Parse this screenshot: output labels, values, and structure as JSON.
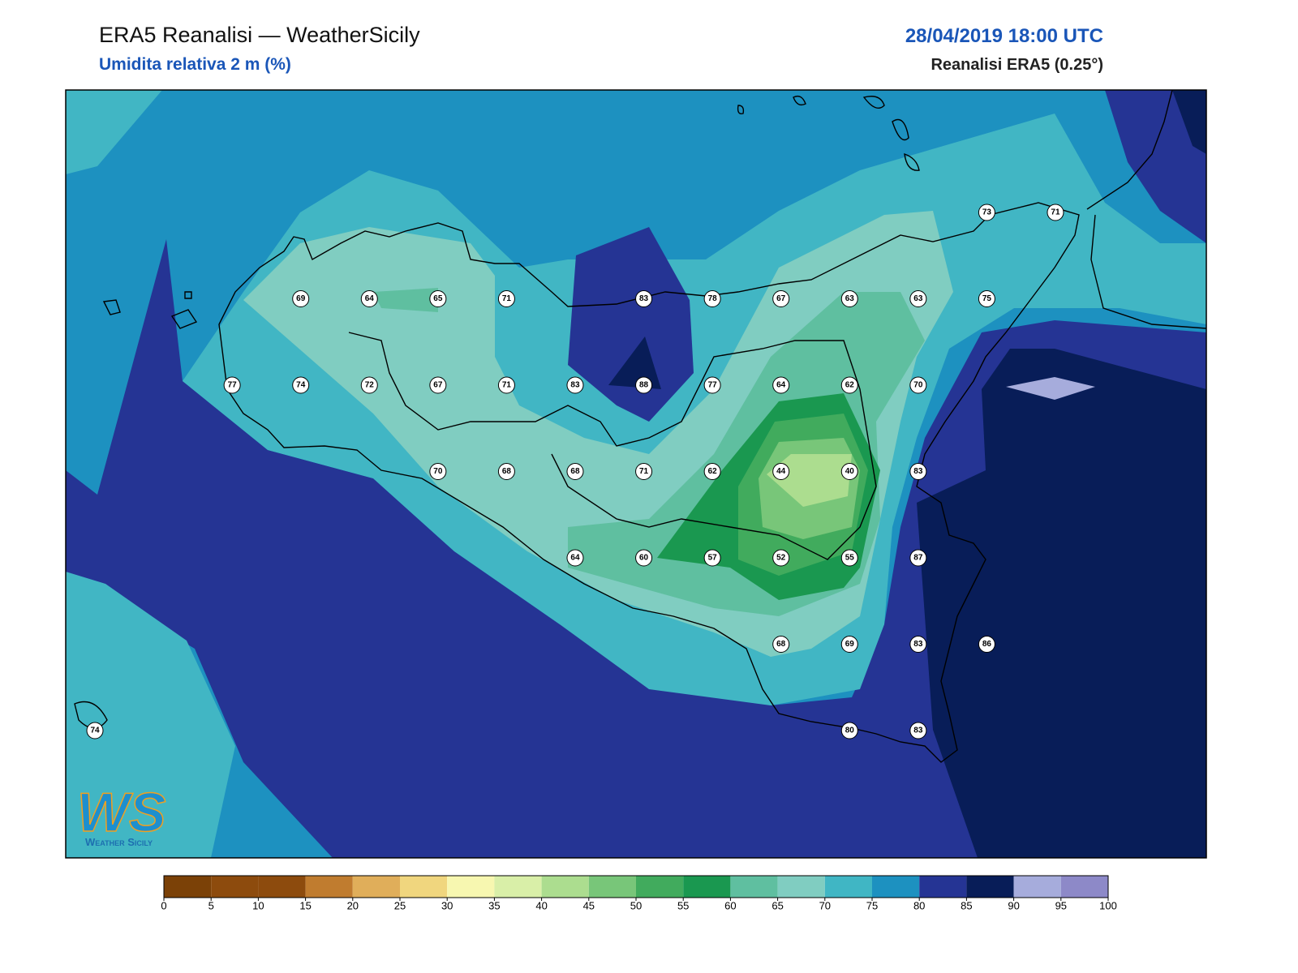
{
  "header": {
    "title": "ERA5 Reanalisi — WeatherSicily",
    "subtitle": "Umidita relativa 2 m (%)",
    "datetime": "28/04/2019 18:00 UTC",
    "source": "Reanalisi ERA5 (0.25°)"
  },
  "logo": {
    "mark": "WS",
    "name": "Weather Sicily"
  },
  "stations": {
    "values": [
      73,
      71,
      69,
      64,
      65,
      71,
      83,
      78,
      67,
      63,
      63,
      75,
      77,
      74,
      72,
      67,
      71,
      83,
      88,
      77,
      64,
      62,
      70,
      70,
      68,
      68,
      71,
      62,
      44,
      40,
      83,
      64,
      60,
      57,
      52,
      55,
      87,
      68,
      69,
      83,
      86,
      74,
      80,
      83
    ]
  },
  "colorbar": {
    "ticks": [
      0,
      5,
      10,
      15,
      20,
      25,
      30,
      35,
      40,
      45,
      50,
      55,
      60,
      65,
      70,
      75,
      80,
      85,
      90,
      95,
      100
    ],
    "colors": [
      "#7b4107",
      "#8d4b0d",
      "#8d4b0d",
      "#c07c2f",
      "#e0ae5a",
      "#f0d67e",
      "#f7f7b0",
      "#d9efa8",
      "#acdd8f",
      "#78c679",
      "#41ab5d",
      "#1a9850",
      "#5fbfa0",
      "#80cdc1",
      "#40b6c4",
      "#1d91c0",
      "#253494",
      "#081d58",
      "#a6acdc",
      "#8d89c8"
    ]
  }
}
